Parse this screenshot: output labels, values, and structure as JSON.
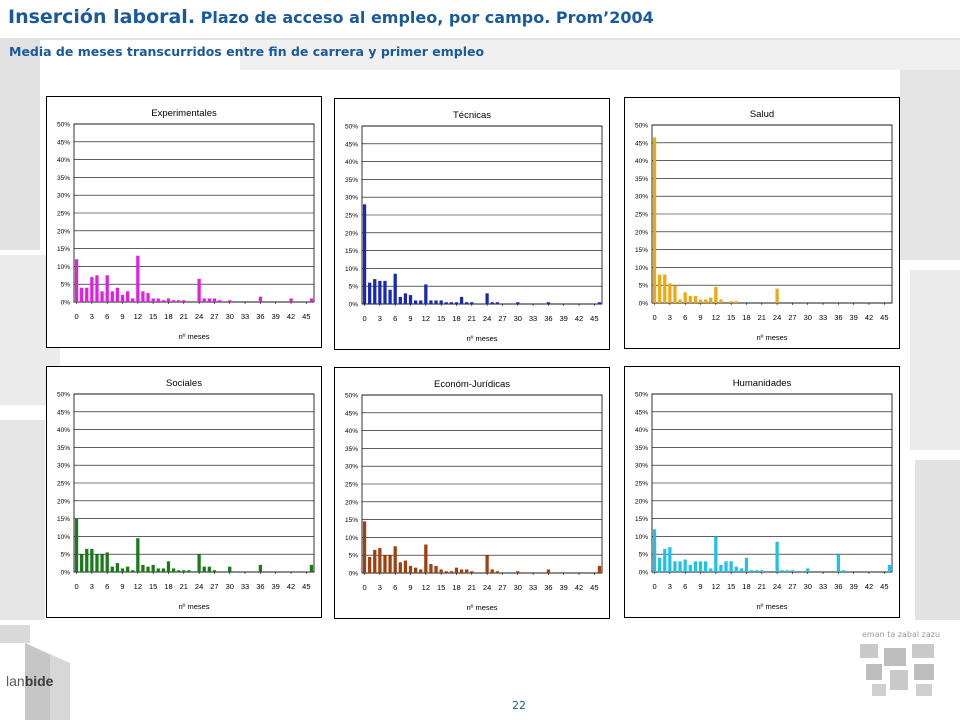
{
  "header": {
    "title_main": "Inserción laboral.",
    "title_rest": "Plazo de acceso al empleo, por campo. Prom’2004",
    "subtitle": "Media de meses transcurridos entre fin de carrera y primer empleo"
  },
  "footer": {
    "logo_pre": "lan",
    "logo_bold": "bide",
    "ej_caption": "eman ta zabal zazu",
    "page_number": "22"
  },
  "colors": {
    "title": "#1a5a9b",
    "experimentales": "#e020e0",
    "tecnicas": "#1a2ab0",
    "salud": "#f0a810",
    "sociales": "#1a7a1a",
    "economico_juridicas": "#a04010",
    "humanidades": "#20c0e8"
  },
  "chart_data": [
    {
      "type": "bar",
      "title": "Experimentales",
      "xlabel": "nº meses",
      "ylabel": "",
      "ylim": [
        0,
        50
      ],
      "y_ticks": [
        "0%",
        "5%",
        "10%",
        "15%",
        "20%",
        "25%",
        "30%",
        "35%",
        "40%",
        "45%",
        "50%"
      ],
      "x_ticks": [
        "0",
        "3",
        "6",
        "9",
        "12",
        "15",
        "18",
        "21",
        "24",
        "27",
        "30",
        "33",
        "36",
        "39",
        "42",
        "45"
      ],
      "color": "#e020e0",
      "values": [
        12,
        4,
        4,
        7,
        7.5,
        3,
        7.5,
        3,
        4,
        2,
        3,
        1,
        13,
        3,
        2.5,
        1,
        1,
        0.5,
        1,
        0.5,
        0.5,
        0.5,
        0,
        0,
        6.5,
        1,
        1,
        1,
        0.5,
        0,
        0.5,
        0,
        0,
        0,
        0,
        0,
        1.5,
        0,
        0,
        0,
        0,
        0,
        1,
        0,
        0,
        0,
        1
      ]
    },
    {
      "type": "bar",
      "title": "Técnicas",
      "xlabel": "nº meses",
      "ylabel": "",
      "ylim": [
        0,
        50
      ],
      "y_ticks": [
        "0%",
        "5%",
        "10%",
        "15%",
        "20%",
        "25%",
        "30%",
        "35%",
        "40%",
        "45%",
        "50%"
      ],
      "x_ticks": [
        "0",
        "3",
        "6",
        "9",
        "12",
        "15",
        "18",
        "21",
        "24",
        "27",
        "30",
        "33",
        "36",
        "39",
        "42",
        "45"
      ],
      "color": "#1a2ab0",
      "values": [
        28,
        6,
        7,
        6.5,
        6.5,
        4,
        8.5,
        2,
        3,
        2.5,
        1,
        1,
        5.5,
        1,
        1,
        1,
        0.5,
        0.5,
        0.5,
        2,
        0.5,
        0.5,
        0,
        0,
        3,
        0.5,
        0.5,
        0,
        0,
        0,
        0.5,
        0,
        0,
        0,
        0,
        0,
        0.5,
        0,
        0,
        0,
        0,
        0,
        0,
        0,
        0,
        0,
        0.5
      ]
    },
    {
      "type": "bar",
      "title": "Salud",
      "xlabel": "nº meses",
      "ylabel": "",
      "ylim": [
        0,
        50
      ],
      "y_ticks": [
        "0%",
        "5%",
        "10%",
        "15%",
        "20%",
        "25%",
        "30%",
        "35%",
        "40%",
        "45%",
        "50%"
      ],
      "x_ticks": [
        "0",
        "3",
        "6",
        "9",
        "12",
        "15",
        "18",
        "21",
        "24",
        "27",
        "30",
        "33",
        "36",
        "39",
        "42",
        "45"
      ],
      "color": "#f0a810",
      "values": [
        46.5,
        8,
        8,
        5.5,
        5,
        1,
        3,
        2,
        2,
        1,
        1,
        1.5,
        4.5,
        1,
        0,
        0.5,
        0.5,
        0,
        0,
        0,
        0,
        0,
        0,
        0,
        4,
        0,
        0,
        0,
        0,
        0,
        0,
        0,
        0,
        0,
        0,
        0,
        0,
        0,
        0,
        0,
        0,
        0,
        0,
        0,
        0,
        0,
        0
      ]
    },
    {
      "type": "bar",
      "title": "Sociales",
      "xlabel": "nº meses",
      "ylabel": "",
      "ylim": [
        0,
        50
      ],
      "y_ticks": [
        "0%",
        "5%",
        "10%",
        "15%",
        "20%",
        "25%",
        "30%",
        "35%",
        "40%",
        "45%",
        "50%"
      ],
      "x_ticks": [
        "0",
        "3",
        "6",
        "9",
        "12",
        "15",
        "18",
        "21",
        "24",
        "27",
        "30",
        "33",
        "36",
        "39",
        "42",
        "45"
      ],
      "color": "#1a7a1a",
      "values": [
        15,
        5,
        6.5,
        6.5,
        5,
        5,
        5.5,
        1.5,
        2.5,
        1,
        1.5,
        0.5,
        9.5,
        2,
        1.5,
        2,
        1,
        1,
        3,
        1,
        0.5,
        0.5,
        0.5,
        0,
        5,
        1.5,
        1.5,
        0.5,
        0,
        0,
        1.5,
        0,
        0,
        0,
        0,
        0,
        2,
        0,
        0,
        0,
        0,
        0,
        0,
        0,
        0,
        0,
        2
      ]
    },
    {
      "type": "bar",
      "title": "Económ-Jurídicas",
      "xlabel": "nº meses",
      "ylabel": "",
      "ylim": [
        0,
        50
      ],
      "y_ticks": [
        "0%",
        "5%",
        "10%",
        "15%",
        "20%",
        "25%",
        "30%",
        "35%",
        "40%",
        "45%",
        "50%"
      ],
      "x_ticks": [
        "0",
        "3",
        "6",
        "9",
        "12",
        "15",
        "18",
        "21",
        "24",
        "27",
        "30",
        "33",
        "36",
        "39",
        "42",
        "45"
      ],
      "color": "#a04010",
      "values": [
        14.5,
        4.5,
        6.5,
        7,
        5,
        5,
        7.5,
        3,
        3.5,
        2,
        1.5,
        1,
        8,
        2.5,
        2,
        1,
        0.5,
        0.5,
        1.5,
        1,
        1,
        0.5,
        0,
        0,
        5,
        1,
        0.5,
        0,
        0,
        0,
        0.5,
        0,
        0,
        0,
        0,
        0,
        1,
        0,
        0,
        0,
        0,
        0,
        0,
        0,
        0,
        0,
        2
      ]
    },
    {
      "type": "bar",
      "title": "Humanidades",
      "xlabel": "nº meses",
      "ylabel": "",
      "ylim": [
        0,
        50
      ],
      "y_ticks": [
        "0%",
        "5%",
        "10%",
        "15%",
        "20%",
        "25%",
        "30%",
        "35%",
        "40%",
        "45%",
        "50%"
      ],
      "x_ticks": [
        "0",
        "3",
        "6",
        "9",
        "12",
        "15",
        "18",
        "21",
        "24",
        "27",
        "30",
        "33",
        "36",
        "39",
        "42",
        "45"
      ],
      "color": "#20c0e8",
      "values": [
        12,
        4,
        6.5,
        7,
        3,
        3,
        3.5,
        2,
        3,
        3,
        3,
        1,
        10,
        2,
        3,
        3,
        1.5,
        1,
        4,
        0.5,
        0.5,
        0.5,
        0,
        0,
        8.5,
        0.5,
        0.5,
        0.5,
        0,
        0,
        1,
        0,
        0,
        0,
        0,
        0,
        5,
        0.5,
        0,
        0,
        0,
        0,
        0,
        0,
        0,
        0,
        2
      ]
    }
  ]
}
